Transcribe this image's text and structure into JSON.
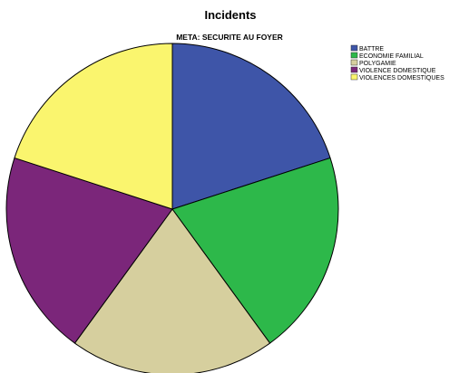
{
  "chart_data": {
    "type": "pie",
    "title": "Incidents",
    "subtitle": "META: SECURITE AU FOYER",
    "legend_position": "top-right",
    "categories": [
      "BATTRE",
      "ECONOMIE FAMILIAL",
      "POLYGAMIE",
      "VIOLENCE DOMESTIQUE",
      "VIOLENCES DOMESTIQUES"
    ],
    "values": [
      20,
      20,
      20,
      20,
      20
    ],
    "colors": [
      "#3e55a8",
      "#2db84a",
      "#d6cf9e",
      "#7b267a",
      "#faf56e"
    ]
  }
}
